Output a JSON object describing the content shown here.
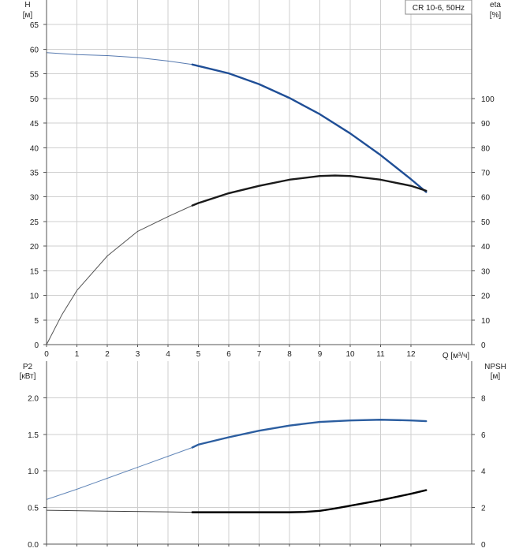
{
  "legend": {
    "label": "CR 10-6, 50Hz"
  },
  "colors": {
    "head_curve": "#1f4e96",
    "eta_curve": "#1a1a1a",
    "p2_curve": "#2c5ea0",
    "npsh_curve": "#000000",
    "grid": "#cfcfcf"
  },
  "chart_data": [
    {
      "type": "line",
      "name": "head-efficiency-chart",
      "left_axis": {
        "label_top": "H",
        "label_unit": "[м]",
        "ylim": [
          0,
          70
        ],
        "ticks": [
          0,
          5,
          10,
          15,
          20,
          25,
          30,
          35,
          40,
          45,
          50,
          55,
          60,
          65
        ]
      },
      "right_axis": {
        "label_top": "eta",
        "label_unit": "[%]",
        "ylim": [
          0,
          140
        ],
        "ticks": [
          0,
          10,
          20,
          30,
          40,
          50,
          60,
          70,
          80,
          90,
          100
        ]
      },
      "x_axis": {
        "label": "Q [м³/ч]",
        "xlim": [
          0,
          14
        ],
        "ticks": [
          0,
          1,
          2,
          3,
          4,
          5,
          6,
          7,
          8,
          9,
          10,
          11,
          12
        ]
      },
      "series": [
        {
          "axis": "left",
          "x": [
            0,
            0.5,
            1,
            2,
            3,
            4,
            4.8,
            5,
            6,
            7,
            8,
            9,
            10,
            11,
            12,
            12.5
          ],
          "y": [
            59.3,
            59.1,
            58.9,
            58.7,
            58.3,
            57.6,
            56.9,
            56.6,
            55.1,
            52.9,
            50.1,
            46.8,
            42.9,
            38.5,
            33.6,
            31.0
          ],
          "bold_from_x": 4.8
        },
        {
          "axis": "right",
          "x": [
            0,
            0.5,
            1,
            2,
            3,
            4,
            4.8,
            5,
            6,
            7,
            8,
            9,
            9.5,
            10,
            11,
            12,
            12.5
          ],
          "y": [
            0,
            12,
            22,
            36,
            46,
            52,
            56.5,
            57.5,
            61.5,
            64.5,
            67,
            68.5,
            68.7,
            68.5,
            67,
            64.5,
            62.5
          ],
          "bold_from_x": 4.8
        }
      ]
    },
    {
      "type": "line",
      "name": "power-npsh-chart",
      "left_axis": {
        "label_top": "P2",
        "label_unit": "[кВт]",
        "ylim": [
          0,
          2.5
        ],
        "ticks": [
          0.0,
          0.5,
          1.0,
          1.5,
          2.0
        ],
        "tick_labels": [
          "0.0",
          "0.5",
          "1.0",
          "1.5",
          "2.0"
        ]
      },
      "right_axis": {
        "label_top": "NPSH",
        "label_unit": "[м]",
        "ylim": [
          0,
          10
        ],
        "ticks": [
          0,
          2,
          4,
          6,
          8
        ]
      },
      "x_axis": {
        "xlim": [
          0,
          14
        ],
        "ticks": [
          0,
          1,
          2,
          3,
          4,
          5,
          6,
          7,
          8,
          9,
          10,
          11,
          12
        ]
      },
      "series": [
        {
          "axis": "left",
          "x": [
            0,
            1,
            2,
            3,
            4,
            4.8,
            5,
            6,
            7,
            8,
            9,
            10,
            11,
            12,
            12.5
          ],
          "y": [
            0.61,
            0.75,
            0.9,
            1.05,
            1.2,
            1.32,
            1.36,
            1.46,
            1.55,
            1.62,
            1.67,
            1.69,
            1.7,
            1.69,
            1.68
          ],
          "bold_from_x": 4.8
        },
        {
          "axis": "right",
          "x": [
            0,
            2,
            4,
            4.8,
            5,
            6,
            7,
            8,
            8.5,
            9,
            9.5,
            10,
            11,
            12,
            12.5
          ],
          "y": [
            1.85,
            1.8,
            1.76,
            1.74,
            1.74,
            1.74,
            1.74,
            1.74,
            1.76,
            1.82,
            1.95,
            2.1,
            2.4,
            2.75,
            2.95
          ],
          "bold_from_x": 4.8
        }
      ]
    }
  ]
}
